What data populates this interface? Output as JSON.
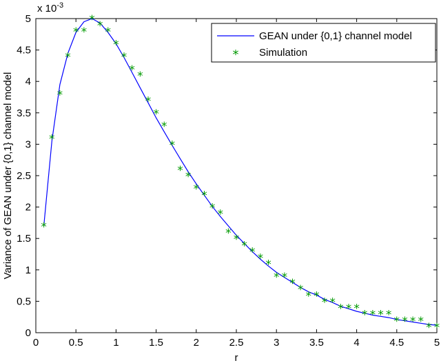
{
  "chart_data": {
    "type": "line",
    "title": "",
    "xlabel": "r",
    "ylabel": "Variance of GEAN under {0,1} channel model",
    "exponent_label": {
      "base": "x 10",
      "power": "-3"
    },
    "xlim": [
      0,
      5
    ],
    "ylim": [
      0,
      5
    ],
    "grid": false,
    "legend_position": "top-right",
    "x_ticks": [
      "0",
      "0.5",
      "1",
      "1.5",
      "2",
      "2.5",
      "3",
      "3.5",
      "4",
      "4.5",
      "5"
    ],
    "y_ticks": [
      "0",
      "0.5",
      "1",
      "1.5",
      "2",
      "2.5",
      "3",
      "3.5",
      "4",
      "4.5",
      "5"
    ],
    "series": [
      {
        "name": "GEAN under {0,1} channel model",
        "style": "line",
        "color": "#0000ff",
        "x": [
          0.1,
          0.2,
          0.3,
          0.4,
          0.5,
          0.6,
          0.7,
          0.8,
          0.9,
          1.0,
          1.1,
          1.2,
          1.3,
          1.4,
          1.5,
          1.6,
          1.7,
          1.8,
          1.9,
          2.0,
          2.1,
          2.2,
          2.3,
          2.4,
          2.5,
          2.6,
          2.7,
          2.8,
          2.9,
          3.0,
          3.1,
          3.2,
          3.3,
          3.4,
          3.5,
          3.6,
          3.7,
          3.8,
          3.9,
          4.0,
          4.1,
          4.2,
          4.3,
          4.4,
          4.5,
          4.6,
          4.7,
          4.8,
          4.9,
          5.0
        ],
        "y": [
          1.7,
          3.05,
          3.95,
          4.45,
          4.78,
          4.95,
          5.0,
          4.93,
          4.78,
          4.6,
          4.38,
          4.14,
          3.9,
          3.66,
          3.42,
          3.2,
          2.98,
          2.77,
          2.56,
          2.37,
          2.19,
          2.01,
          1.85,
          1.7,
          1.55,
          1.42,
          1.29,
          1.17,
          1.06,
          0.96,
          0.88,
          0.8,
          0.72,
          0.65,
          0.6,
          0.53,
          0.48,
          0.42,
          0.38,
          0.34,
          0.31,
          0.28,
          0.26,
          0.24,
          0.21,
          0.19,
          0.17,
          0.15,
          0.13,
          0.12
        ]
      },
      {
        "name": "Simulation",
        "style": "marker",
        "marker": "*",
        "color": "#009900",
        "x": [
          0.1,
          0.2,
          0.3,
          0.4,
          0.5,
          0.6,
          0.7,
          0.8,
          0.9,
          1.0,
          1.1,
          1.2,
          1.3,
          1.4,
          1.5,
          1.6,
          1.7,
          1.8,
          1.9,
          2.0,
          2.1,
          2.2,
          2.3,
          2.4,
          2.5,
          2.6,
          2.7,
          2.8,
          2.9,
          3.0,
          3.1,
          3.2,
          3.3,
          3.4,
          3.5,
          3.6,
          3.7,
          3.8,
          3.9,
          4.0,
          4.1,
          4.2,
          4.3,
          4.4,
          4.5,
          4.6,
          4.7,
          4.8,
          4.9,
          5.0
        ],
        "y": [
          1.7,
          3.1,
          3.8,
          4.4,
          4.8,
          4.8,
          5.0,
          4.9,
          4.8,
          4.6,
          4.4,
          4.2,
          4.1,
          3.7,
          3.5,
          3.3,
          3.0,
          2.6,
          2.5,
          2.3,
          2.2,
          2.0,
          1.9,
          1.6,
          1.5,
          1.4,
          1.3,
          1.2,
          1.1,
          0.9,
          0.9,
          0.8,
          0.7,
          0.6,
          0.6,
          0.5,
          0.5,
          0.4,
          0.4,
          0.4,
          0.3,
          0.3,
          0.3,
          0.3,
          0.2,
          0.2,
          0.2,
          0.2,
          0.1,
          0.1
        ]
      }
    ]
  }
}
